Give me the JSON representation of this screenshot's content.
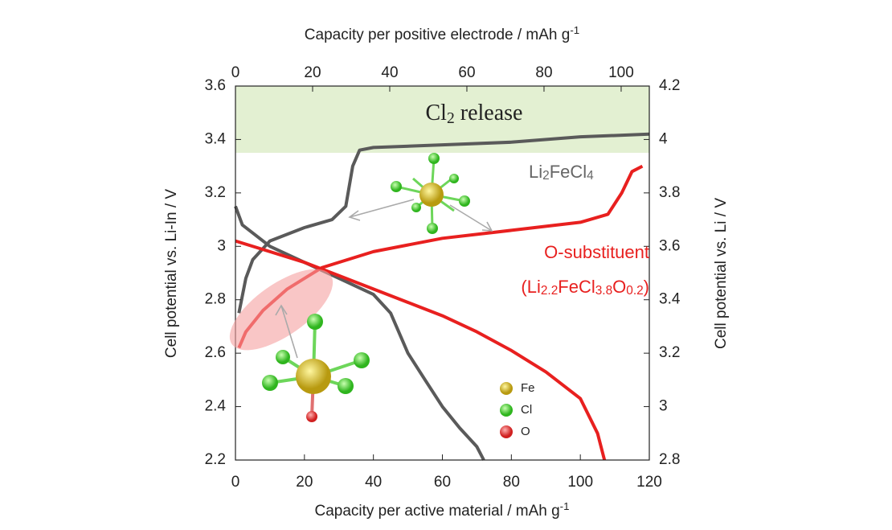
{
  "chart_data": {
    "type": "line",
    "title_top_axis": [
      "Capacity per positive electrode / mAh g",
      "-1"
    ],
    "xlabel": [
      "Capacity per active material / mAh g",
      "-1"
    ],
    "ylabel": "Cell potential vs. Li-In / V",
    "y2label": "Cell potential vs. Li / V",
    "xlim": [
      0,
      120
    ],
    "xticks": [
      0,
      20,
      40,
      60,
      80,
      100,
      120
    ],
    "x2lim": [
      0,
      107.3
    ],
    "x2ticks": [
      0,
      20,
      40,
      60,
      80,
      100
    ],
    "ylim": [
      2.2,
      3.6
    ],
    "yticks": [
      2.2,
      2.4,
      2.6,
      2.8,
      3,
      3.2,
      3.4,
      3.6
    ],
    "y2lim": [
      2.8,
      4.2
    ],
    "y2ticks": [
      2.8,
      3,
      3.2,
      3.4,
      3.6,
      3.8,
      4,
      4.2
    ],
    "band": {
      "ylim": [
        3.35,
        3.6
      ],
      "color": "#e3f0d2",
      "label": [
        "Cl",
        "2",
        " release"
      ]
    },
    "annotations": [
      {
        "parts": [
          "Li",
          "2",
          "FeCl",
          "4"
        ],
        "color": "#666666"
      },
      {
        "parts": [
          "O-substituent"
        ],
        "color": "#e8201f"
      },
      {
        "parts": [
          "(Li",
          "2.2",
          "FeCl",
          "3.8",
          "O",
          "0.2",
          ")"
        ],
        "color": "#e8201f"
      }
    ],
    "atoms": [
      "Fe",
      "Cl",
      "O"
    ],
    "series": [
      {
        "color": "#5a5a5a",
        "x": [
          1,
          3,
          5,
          10,
          20,
          28,
          32,
          34,
          36,
          40,
          60,
          80,
          100,
          120
        ],
        "values": [
          2.75,
          2.88,
          2.95,
          3.02,
          3.07,
          3.1,
          3.15,
          3.3,
          3.36,
          3.37,
          3.38,
          3.39,
          3.41,
          3.42
        ]
      },
      {
        "color": "#5a5a5a",
        "x": [
          0,
          2,
          5,
          10,
          20,
          30,
          40,
          45,
          50,
          55,
          60,
          65,
          70,
          72
        ],
        "values": [
          3.15,
          3.08,
          3.05,
          3.0,
          2.94,
          2.88,
          2.82,
          2.75,
          2.6,
          2.5,
          2.4,
          2.32,
          2.25,
          2.2
        ]
      },
      {
        "color": "#e8201f",
        "x": [
          1,
          3,
          8,
          15,
          25,
          40,
          60,
          80,
          100,
          108,
          112,
          115,
          118
        ],
        "values": [
          2.62,
          2.68,
          2.76,
          2.84,
          2.92,
          2.98,
          3.03,
          3.06,
          3.09,
          3.12,
          3.2,
          3.28,
          3.3
        ]
      },
      {
        "color": "#e8201f",
        "x": [
          0,
          10,
          20,
          30,
          40,
          50,
          60,
          70,
          80,
          90,
          100,
          105,
          107
        ],
        "values": [
          3.02,
          2.98,
          2.94,
          2.89,
          2.84,
          2.79,
          2.74,
          2.68,
          2.61,
          2.53,
          2.43,
          2.3,
          2.2
        ]
      }
    ]
  }
}
